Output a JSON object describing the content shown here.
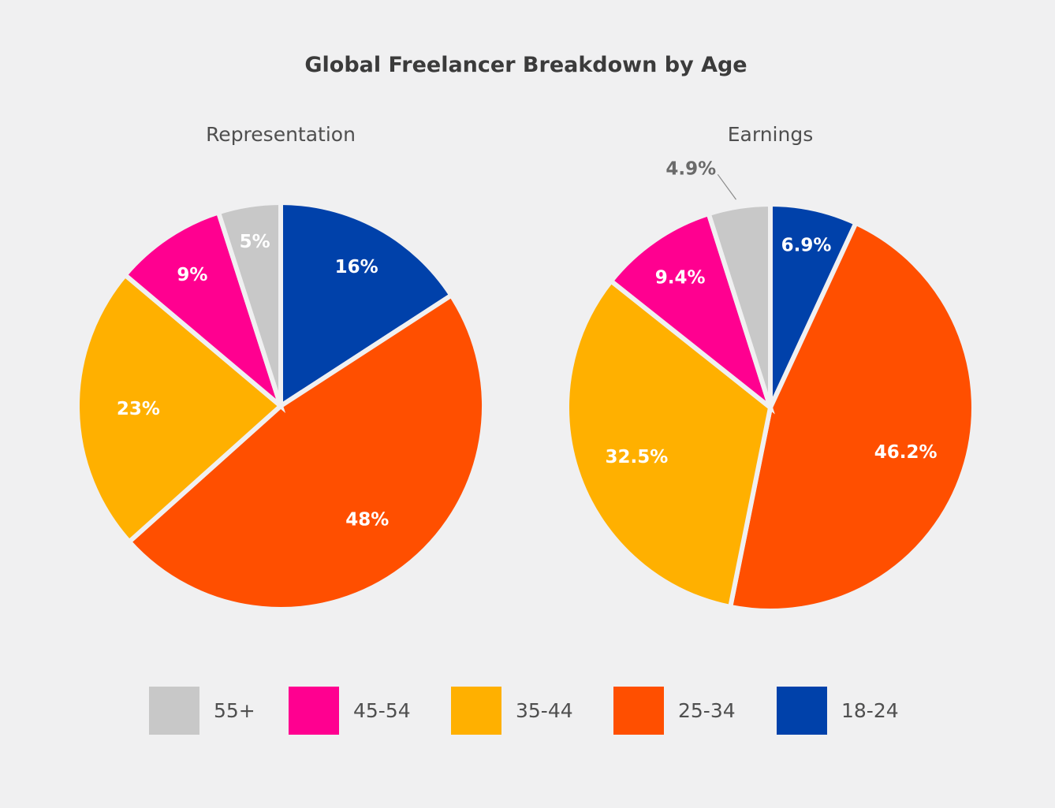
{
  "chart_data": {
    "type": "pie",
    "title": "Global Freelancer Breakdown by Age",
    "legend_position": "bottom",
    "legend": [
      {
        "name": "55+",
        "color": "#c8c8c8"
      },
      {
        "name": "45-54",
        "color": "#ff0090"
      },
      {
        "name": "35-44",
        "color": "#ffb000"
      },
      {
        "name": "25-34",
        "color": "#ff4f00"
      },
      {
        "name": "18-24",
        "color": "#0041aa"
      }
    ],
    "pies": [
      {
        "title": "Representation",
        "slices": [
          {
            "category": "18-24",
            "value": 16,
            "label": "16%"
          },
          {
            "category": "25-34",
            "value": 48,
            "label": "48%"
          },
          {
            "category": "35-44",
            "value": 23,
            "label": "23%"
          },
          {
            "category": "45-54",
            "value": 9,
            "label": "9%"
          },
          {
            "category": "55+",
            "value": 5,
            "label": "5%"
          }
        ]
      },
      {
        "title": "Earnings",
        "slices": [
          {
            "category": "18-24",
            "value": 6.9,
            "label": "6.9%"
          },
          {
            "category": "25-34",
            "value": 46.2,
            "label": "46.2%"
          },
          {
            "category": "35-44",
            "value": 32.5,
            "label": "32.5%"
          },
          {
            "category": "45-54",
            "value": 9.4,
            "label": "9.4%"
          },
          {
            "category": "55+",
            "value": 4.9,
            "label": "4.9%",
            "label_outside": true
          }
        ]
      }
    ]
  }
}
